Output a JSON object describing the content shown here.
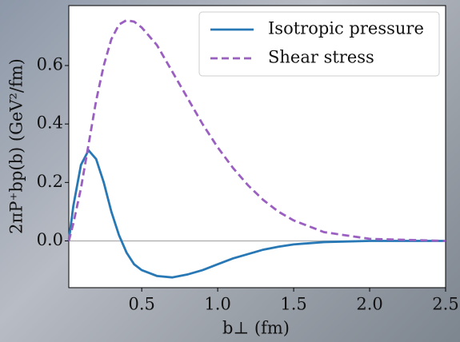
{
  "chart_data": {
    "type": "line",
    "xlabel": "b⊥ (fm)",
    "ylabel": "2πP⁺bp(b) (GeV²/fm)",
    "x": [
      0.02,
      0.05,
      0.1,
      0.15,
      0.2,
      0.25,
      0.3,
      0.35,
      0.4,
      0.45,
      0.5,
      0.6,
      0.7,
      0.8,
      0.9,
      1.0,
      1.1,
      1.2,
      1.3,
      1.4,
      1.5,
      1.7,
      2.0,
      2.5
    ],
    "series": [
      {
        "name": "Isotropic pressure",
        "color": "#2878b5",
        "dash": false,
        "values": [
          0,
          0.12,
          0.26,
          0.31,
          0.28,
          0.2,
          0.1,
          0.02,
          -0.04,
          -0.08,
          -0.1,
          -0.12,
          -0.125,
          -0.115,
          -0.1,
          -0.08,
          -0.06,
          -0.045,
          -0.03,
          -0.02,
          -0.012,
          -0.004,
          0,
          0
        ]
      },
      {
        "name": "Shear stress",
        "color": "#9a5fc0",
        "dash": true,
        "values": [
          0,
          0.06,
          0.18,
          0.33,
          0.48,
          0.6,
          0.69,
          0.74,
          0.755,
          0.75,
          0.73,
          0.67,
          0.58,
          0.49,
          0.4,
          0.32,
          0.25,
          0.19,
          0.14,
          0.1,
          0.07,
          0.03,
          0.007,
          0
        ]
      }
    ],
    "xlim": [
      0.02,
      2.5
    ],
    "ylim": [
      -0.16,
      0.805
    ],
    "xticks": [
      0.5,
      {
        "value": 1,
        "label": "1.0"
      },
      1.5,
      {
        "value": 2,
        "label": "2.0"
      },
      2.5
    ],
    "yticks": [
      {
        "value": 0,
        "label": "0.0"
      },
      0.2,
      0.4,
      0.6
    ],
    "legend": "upper right"
  }
}
